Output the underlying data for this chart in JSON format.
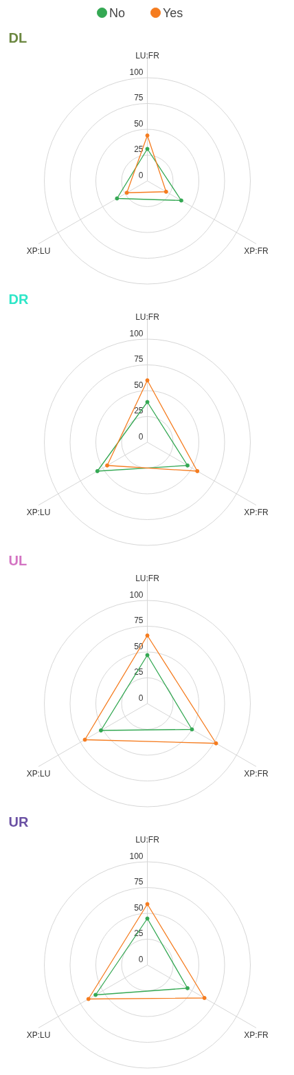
{
  "chart_data": [
    {
      "type": "radar",
      "title": "DL",
      "categories": [
        "LU:FR",
        "XP:FR",
        "XP:LU"
      ],
      "ylim": [
        0,
        100
      ],
      "yticks": [
        0,
        25,
        50,
        75,
        100
      ],
      "grid": true,
      "legend": "top",
      "marker": "circle",
      "series": [
        {
          "name": "No",
          "color": "#34a853",
          "values": [
            31,
            38,
            34
          ]
        },
        {
          "name": "Yes",
          "color": "#f57c1f",
          "values": [
            44,
            21,
            23
          ]
        }
      ]
    },
    {
      "type": "radar",
      "title": "DR",
      "categories": [
        "LU:FR",
        "XP:FR",
        "XP:LU"
      ],
      "ylim": [
        0,
        100
      ],
      "yticks": [
        0,
        25,
        50,
        75,
        100
      ],
      "grid": true,
      "marker": "circle",
      "series": [
        {
          "color": "#34a853",
          "values": [
            39,
            45,
            56
          ]
        },
        {
          "color": "#f57c1f",
          "values": [
            60,
            56,
            45
          ]
        }
      ]
    },
    {
      "type": "radar",
      "title": "UL",
      "categories": [
        "LU:FR",
        "XP:FR",
        "XP:LU"
      ],
      "ylim": [
        0,
        100
      ],
      "yticks": [
        0,
        25,
        50,
        75,
        100
      ],
      "grid": true,
      "marker": "circle",
      "series": [
        {
          "color": "#34a853",
          "values": [
            47,
            50,
            52
          ]
        },
        {
          "color": "#f57c1f",
          "values": [
            66,
            77,
            70
          ]
        }
      ]
    },
    {
      "type": "radar",
      "title": "UR",
      "categories": [
        "LU:FR",
        "XP:FR",
        "XP:LU"
      ],
      "ylim": [
        0,
        100
      ],
      "yticks": [
        0,
        25,
        50,
        75,
        100
      ],
      "grid": true,
      "marker": "circle",
      "series": [
        {
          "color": "#34a853",
          "values": [
            45,
            45,
            58
          ]
        },
        {
          "color": "#f57c1f",
          "values": [
            59,
            64,
            66
          ]
        }
      ]
    }
  ]
}
